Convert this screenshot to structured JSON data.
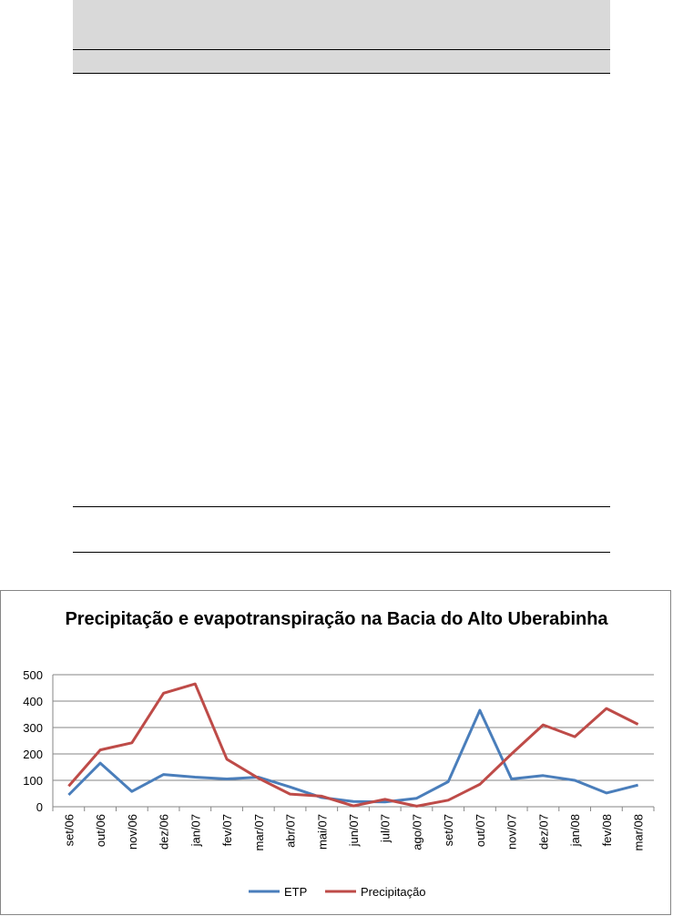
{
  "chart_data": {
    "type": "line",
    "title": "Precipitação e evapotranspiração na Bacia do Alto Uberabinha",
    "xlabel": "",
    "ylabel": "",
    "ylim": [
      0,
      500
    ],
    "yticks": [
      0,
      100,
      200,
      300,
      400,
      500
    ],
    "grid": true,
    "legend_position": "bottom",
    "categories": [
      "set/06",
      "out/06",
      "nov/06",
      "dez/06",
      "jan/07",
      "fev/07",
      "mar/07",
      "abr/07",
      "mai/07",
      "jun/07",
      "jul/07",
      "ago/07",
      "set/07",
      "out/07",
      "nov/07",
      "dez/07",
      "jan/08",
      "fev/08",
      "mar/08"
    ],
    "series": [
      {
        "name": "ETP",
        "color": "#4a7ebb",
        "values": [
          45,
          165,
          58,
          122,
          112,
          105,
          112,
          75,
          35,
          20,
          18,
          32,
          95,
          365,
          105,
          118,
          100,
          52,
          82
        ]
      },
      {
        "name": "Precipitação",
        "color": "#be4b48",
        "values": [
          78,
          215,
          242,
          430,
          465,
          180,
          108,
          48,
          40,
          3,
          28,
          2,
          25,
          85,
          200,
          310,
          265,
          372,
          312
        ]
      }
    ]
  }
}
